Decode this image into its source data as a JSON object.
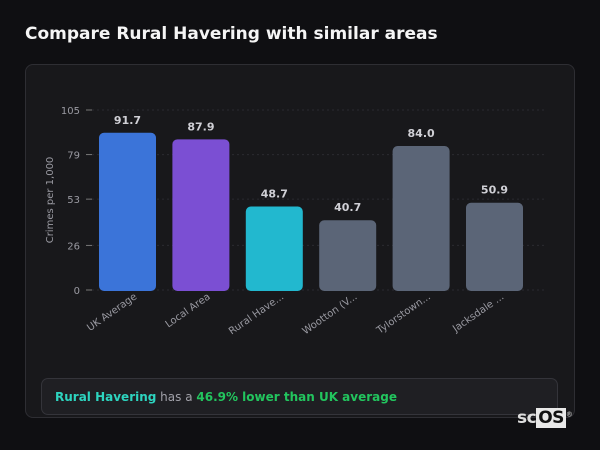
{
  "page_title": "Compare Rural Havering with similar areas",
  "chart_data": {
    "type": "bar",
    "categories": [
      "UK Average",
      "Local Area",
      "Rural Have...",
      "Wootton (V...",
      "Tylorstown...",
      "Jacksdale ..."
    ],
    "values": [
      91.7,
      87.9,
      48.7,
      40.7,
      84.0,
      50.9
    ],
    "value_labels": [
      "91.7",
      "87.9",
      "48.7",
      "40.7",
      "84.0",
      "50.9"
    ],
    "colors": [
      "#3b74d9",
      "#7b4fd3",
      "#22b8cf",
      "#5b6577",
      "#5b6577",
      "#5b6577"
    ],
    "ylabel": "Crimes per 1,000",
    "xlabel": "",
    "ylim": [
      0,
      105
    ],
    "yticks": [
      0,
      26,
      53,
      79,
      105
    ],
    "grid": true
  },
  "summary": {
    "area": "Rural Havering",
    "connector": " has a ",
    "comparison": "46.9% lower than UK average"
  },
  "logo": {
    "text_sc": "sc",
    "text_os": "OS",
    "mark": "®"
  }
}
